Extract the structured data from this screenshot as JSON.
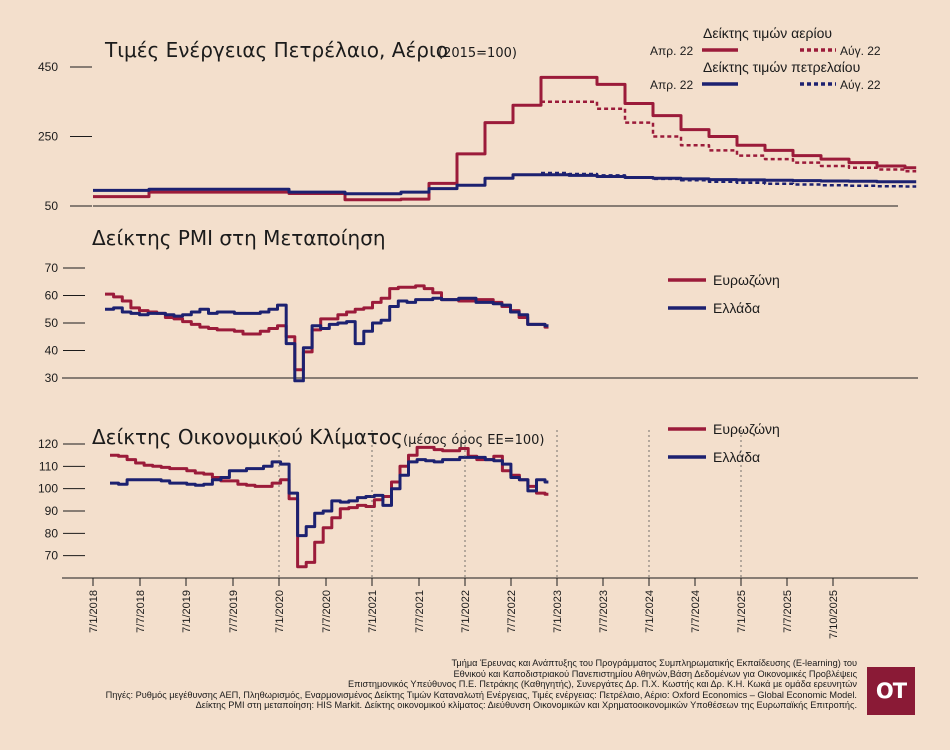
{
  "colors": {
    "red": "#9b1b3a",
    "navy": "#1c2170",
    "background": "#f3dfcc",
    "logo_bg": "#8a1a36"
  },
  "panels": {
    "energy": {
      "title": "Τιμές Ενέργειας Πετρέλαιο, Αέριο",
      "subtitle": "(2015=100)"
    },
    "pmi": {
      "title": "Δείκτης PMI στη Μεταποίηση"
    },
    "esi": {
      "title": "Δείκτης Οικονομικού Κλίματος",
      "subtitle": "(μέσος όρος ΕΕ=100)"
    }
  },
  "legend": {
    "gas_title": "Δείκτης τιμών αερίου",
    "oil_title": "Δείκτης τιμών πετρελαίου",
    "apr": "Απρ. 22",
    "aug": "Αύγ. 22",
    "eurozone": "Ευρωζώνη",
    "greece": "Ελλάδα"
  },
  "footer": {
    "line1": "Τμήμα Έρευνας και Ανάπτυξης του Προγράμματος Συμπληρωματικής Εκπαίδευσης (E-learning) του",
    "line2": "Εθνικού και Καποδιστριακού Πανεπιστημίου Αθηνών,Βάση Δεδομένων για Οικονομικές Προβλέψεις",
    "line3": "Επιστημονικός Υπεύθυνος Π.Ε. Πετράκης (Καθηγητής), Συνεργάτες Δρ. Π.Χ. Κωστής και Δρ. Κ.Η. Κωκά με ομάδα ερευνητών",
    "line4": "Πηγές: Ρυθμός μεγέθυνσης ΑΕΠ, Πληθωρισμός, Εναρμονισμένος Δείκτης Τιμών Καταναλωτή Ενέργειας, Τιμές ενέργειας: Πετρέλαιο, Αέριο: Oxford Economics – Global Economic Model.",
    "line5": "Δείκτης PMI στη μεταποίηση: HIS Markit. Δείκτης οικονομικού κλίματος: Διεύθυνση Οικονομικών και Χρηματοοικονομικών Υποθέσεων της Ευρωπαϊκής Επιτροπής."
  },
  "logo": "ΟΤ",
  "chart_data": [
    {
      "type": "line",
      "title": "Τιμές Ενέργειας Πετρέλαιο, Αέριο (2015=100)",
      "x": [
        "2018Q3",
        "2018Q4",
        "2019Q1",
        "2019Q2",
        "2019Q3",
        "2019Q4",
        "2020Q1",
        "2020Q2",
        "2020Q3",
        "2020Q4",
        "2021Q1",
        "2021Q2",
        "2021Q3",
        "2021Q4",
        "2022Q1",
        "2022Q2",
        "2022Q3",
        "2022Q4",
        "2023Q1",
        "2023Q2",
        "2023Q3",
        "2023Q4",
        "2024Q1",
        "2024Q2",
        "2024Q3",
        "2024Q4",
        "2025Q1",
        "2025Q2",
        "2025Q3",
        "2025Q4"
      ],
      "yticks": [
        50,
        250,
        450
      ],
      "ylim": [
        50,
        450
      ],
      "series": [
        {
          "name": "Δείκτης τιμών αερίου — Απρ. 22",
          "color": "red",
          "style": "solid",
          "values": [
            77,
            77,
            90,
            90,
            90,
            90,
            90,
            86,
            86,
            68,
            68,
            70,
            115,
            200,
            290,
            340,
            420,
            420,
            400,
            345,
            310,
            270,
            250,
            225,
            210,
            195,
            185,
            175,
            165,
            160
          ]
        },
        {
          "name": "Δείκτης τιμών αερίου — Αύγ. 22",
          "color": "red",
          "style": "dotted",
          "values": [
            null,
            null,
            null,
            null,
            null,
            null,
            null,
            null,
            null,
            null,
            null,
            null,
            null,
            null,
            null,
            null,
            350,
            350,
            330,
            290,
            250,
            225,
            210,
            195,
            185,
            175,
            165,
            160,
            155,
            150
          ]
        },
        {
          "name": "Δείκτης τιμών πετρελαίου — Απρ. 22",
          "color": "navy",
          "style": "solid",
          "values": [
            95,
            95,
            98,
            98,
            98,
            98,
            98,
            90,
            90,
            85,
            85,
            90,
            100,
            110,
            130,
            140,
            140,
            138,
            135,
            132,
            130,
            128,
            126,
            125,
            124,
            123,
            122,
            121,
            120,
            120
          ]
        },
        {
          "name": "Δείκτης τιμών πετρελαίου — Αύγ. 22",
          "color": "navy",
          "style": "dotted",
          "values": [
            null,
            null,
            null,
            null,
            null,
            null,
            null,
            null,
            null,
            null,
            null,
            null,
            null,
            null,
            null,
            null,
            145,
            142,
            138,
            133,
            128,
            124,
            120,
            117,
            114,
            112,
            110,
            108,
            107,
            106
          ]
        }
      ]
    },
    {
      "type": "line",
      "title": "Δείκτης PMI στη Μεταποίηση",
      "x": [
        "2018-06",
        "2018-07",
        "2018-08",
        "2018-09",
        "2018-10",
        "2018-11",
        "2018-12",
        "2019-01",
        "2019-02",
        "2019-03",
        "2019-04",
        "2019-05",
        "2019-06",
        "2019-07",
        "2019-08",
        "2019-09",
        "2019-10",
        "2019-11",
        "2019-12",
        "2020-01",
        "2020-02",
        "2020-03",
        "2020-04",
        "2020-05",
        "2020-06",
        "2020-07",
        "2020-08",
        "2020-09",
        "2020-10",
        "2020-11",
        "2020-12",
        "2021-01",
        "2021-02",
        "2021-03",
        "2021-04",
        "2021-05",
        "2021-06",
        "2021-07",
        "2021-08",
        "2021-09",
        "2021-10",
        "2021-11",
        "2021-12",
        "2022-01",
        "2022-02",
        "2022-03",
        "2022-04",
        "2022-05",
        "2022-06",
        "2022-07",
        "2022-08",
        "2022-09"
      ],
      "yticks": [
        30,
        40,
        50,
        60,
        70
      ],
      "ylim": [
        30,
        70
      ],
      "series": [
        {
          "name": "Ευρωζώνη",
          "color": "red",
          "values": [
            60.5,
            59.5,
            58,
            55.5,
            54.5,
            54,
            53.5,
            52,
            51.5,
            50.5,
            49.5,
            48.5,
            48,
            47.5,
            47.5,
            47,
            46,
            46,
            47,
            48,
            49,
            45,
            33,
            39.5,
            47.5,
            51.5,
            51.5,
            53,
            54,
            55,
            55.5,
            57.5,
            59,
            62.5,
            63,
            63,
            63.5,
            62.5,
            61,
            58.5,
            58.5,
            58,
            58,
            58.5,
            58.5,
            57.5,
            56,
            54.5,
            52,
            49.5,
            49.5,
            48.5
          ]
        },
        {
          "name": "Ελλάδα",
          "color": "navy",
          "values": [
            55,
            55.5,
            54,
            53.5,
            53,
            53.5,
            53.5,
            53,
            52.5,
            53,
            54,
            55,
            53.5,
            54,
            54,
            53.5,
            53.5,
            53.5,
            54,
            55,
            56.5,
            42.5,
            29,
            41,
            49,
            48,
            49.5,
            50,
            50.5,
            42.5,
            47,
            50,
            51,
            56,
            58,
            57.5,
            58.5,
            58.5,
            59,
            58.5,
            58.5,
            59,
            59,
            57.5,
            57.5,
            57,
            56.5,
            54,
            53,
            49.5,
            49.5,
            49
          ]
        }
      ]
    },
    {
      "type": "line",
      "title": "Δείκτης Οικονομικού Κλίματος (μέσος όρος ΕΕ=100)",
      "x": [
        "2018-06",
        "2018-07",
        "2018-08",
        "2018-09",
        "2018-10",
        "2018-11",
        "2018-12",
        "2019-01",
        "2019-02",
        "2019-03",
        "2019-04",
        "2019-05",
        "2019-06",
        "2019-07",
        "2019-08",
        "2019-09",
        "2019-10",
        "2019-11",
        "2019-12",
        "2020-01",
        "2020-02",
        "2020-03",
        "2020-04",
        "2020-05",
        "2020-06",
        "2020-07",
        "2020-08",
        "2020-09",
        "2020-10",
        "2020-11",
        "2020-12",
        "2021-01",
        "2021-02",
        "2021-03",
        "2021-04",
        "2021-05",
        "2021-06",
        "2021-07",
        "2021-08",
        "2021-09",
        "2021-10",
        "2021-11",
        "2021-12",
        "2022-01",
        "2022-02",
        "2022-03",
        "2022-04",
        "2022-05",
        "2022-06",
        "2022-07",
        "2022-08",
        "2022-09"
      ],
      "yticks": [
        70,
        80,
        90,
        100,
        110,
        120
      ],
      "ylim": [
        60,
        120
      ],
      "series": [
        {
          "name": "Ευρωζώνη",
          "color": "red",
          "values": [
            115,
            114.5,
            113,
            111.5,
            110.5,
            110,
            109.5,
            109,
            109,
            108,
            107,
            106.5,
            105,
            103.5,
            103.5,
            102,
            101.5,
            101,
            101,
            102.5,
            104,
            95.5,
            65,
            67,
            76,
            82.5,
            87,
            91,
            91.5,
            92.5,
            92,
            95,
            96.5,
            103,
            110,
            115,
            118.5,
            118.5,
            117.5,
            117,
            117,
            118,
            114.5,
            113,
            113,
            114.5,
            108,
            106,
            104,
            101,
            98,
            97.5
          ]
        },
        {
          "name": "Ελλάδα",
          "color": "navy",
          "values": [
            102.5,
            102,
            104,
            104,
            104,
            104,
            103.5,
            102.5,
            102.5,
            102,
            101.5,
            102,
            104,
            105,
            108,
            108,
            109,
            109,
            110,
            112,
            111,
            98,
            79,
            83,
            89,
            90,
            94.5,
            94,
            94.5,
            96,
            96.5,
            97,
            92.5,
            100,
            106,
            112,
            113,
            112.5,
            112,
            113,
            113,
            114,
            114,
            114,
            113,
            112.5,
            111,
            105,
            104,
            99,
            104,
            103
          ]
        }
      ]
    }
  ],
  "x_axis_labels": [
    "7/1/2018",
    "7/7/2018",
    "7/1/2019",
    "7/7/2019",
    "7/1/2020",
    "7/7/2020",
    "7/1/2021",
    "7/7/2021",
    "7/1/2022",
    "7/7/2022",
    "7/1/2023",
    "7/7/2023",
    "7/1/2024",
    "7/7/2024",
    "7/1/2025",
    "7/7/2025",
    "7/10/2025"
  ]
}
